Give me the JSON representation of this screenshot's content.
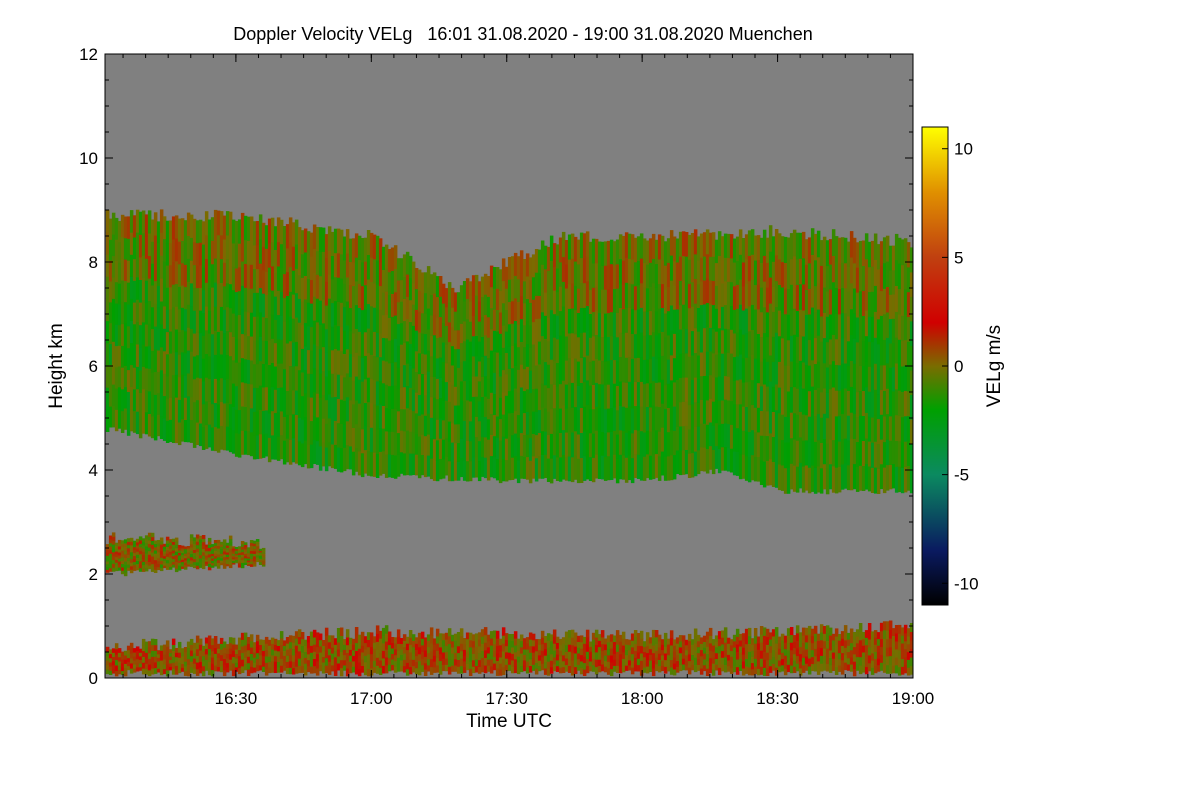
{
  "chart_data": {
    "type": "heatmap",
    "title": "Doppler Velocity VELg   16:01 31.08.2020 - 19:00 31.08.2020 Muenchen",
    "location": "Muenchen",
    "xlabel": "Time UTC",
    "ylabel": "Height km",
    "x_range_hours": [
      16.0167,
      19.0
    ],
    "x_ticks": [
      {
        "value": 16.5,
        "label": "16:30"
      },
      {
        "value": 17.0,
        "label": "17:00"
      },
      {
        "value": 17.5,
        "label": "17:30"
      },
      {
        "value": 18.0,
        "label": "18:00"
      },
      {
        "value": 18.5,
        "label": "18:30"
      },
      {
        "value": 19.0,
        "label": "19:00"
      }
    ],
    "ylim": [
      0,
      12
    ],
    "y_ticks": [
      {
        "value": 0,
        "label": "0"
      },
      {
        "value": 2,
        "label": "2"
      },
      {
        "value": 4,
        "label": "4"
      },
      {
        "value": 6,
        "label": "6"
      },
      {
        "value": 8,
        "label": "8"
      },
      {
        "value": 10,
        "label": "10"
      },
      {
        "value": 12,
        "label": "12"
      }
    ],
    "colorbar": {
      "label": "VELg m/s",
      "range": [
        -11,
        11
      ],
      "ticks": [
        {
          "value": 10,
          "label": "10"
        },
        {
          "value": 5,
          "label": "5"
        },
        {
          "value": 0,
          "label": "0"
        },
        {
          "value": -5,
          "label": "-5"
        },
        {
          "value": -10,
          "label": "-10"
        }
      ],
      "stops": [
        {
          "value": -11,
          "color": "#000000"
        },
        {
          "value": -8.5,
          "color": "#0a1a60"
        },
        {
          "value": -5,
          "color": "#0b8a60"
        },
        {
          "value": -2,
          "color": "#00a000"
        },
        {
          "value": 0,
          "color": "#7a6c00"
        },
        {
          "value": 2,
          "color": "#d00000"
        },
        {
          "value": 5,
          "color": "#c04010"
        },
        {
          "value": 8,
          "color": "#e09000"
        },
        {
          "value": 11,
          "color": "#ffff00"
        }
      ]
    },
    "no_signal_color": "#808080",
    "cloud_layers": [
      {
        "name": "mid-level cloud",
        "velocity_mean_ms": -1.5,
        "base_km": [
          [
            16.02,
            4.8
          ],
          [
            16.5,
            4.3
          ],
          [
            17.0,
            3.9
          ],
          [
            17.5,
            3.8
          ],
          [
            18.0,
            3.8
          ],
          [
            18.3,
            4.0
          ],
          [
            18.5,
            3.6
          ],
          [
            19.0,
            3.6
          ]
        ],
        "top_km": [
          [
            16.02,
            8.9
          ],
          [
            16.5,
            8.9
          ],
          [
            17.0,
            8.5
          ],
          [
            17.3,
            7.5
          ],
          [
            17.7,
            8.5
          ],
          [
            18.0,
            8.5
          ],
          [
            18.5,
            8.6
          ],
          [
            19.0,
            8.4
          ]
        ]
      },
      {
        "name": "low cloud",
        "velocity_mean_ms": 0.0,
        "base_km": [
          [
            16.02,
            2.0
          ],
          [
            16.6,
            2.2
          ]
        ],
        "top_km": [
          [
            16.02,
            2.7
          ],
          [
            16.6,
            2.6
          ]
        ]
      },
      {
        "name": "boundary layer",
        "velocity_mean_ms": 0.5,
        "base_km": [
          [
            16.02,
            0.1
          ],
          [
            19.0,
            0.1
          ]
        ],
        "top_km": [
          [
            16.02,
            0.6
          ],
          [
            17.0,
            0.9
          ],
          [
            18.0,
            0.8
          ],
          [
            19.0,
            1.0
          ]
        ]
      }
    ]
  }
}
